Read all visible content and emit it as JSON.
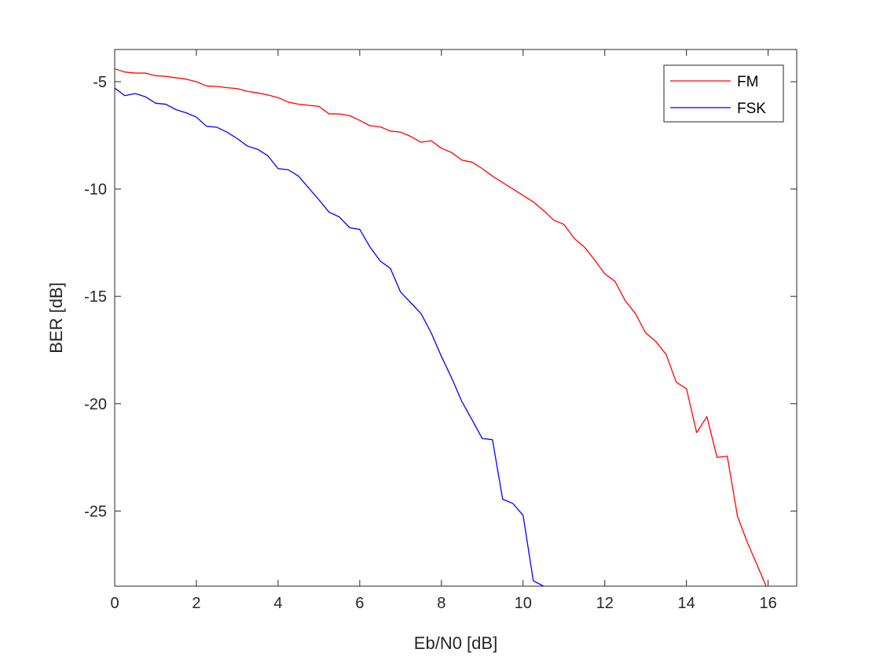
{
  "chart_data": {
    "type": "line",
    "title": "",
    "xlabel": "Eb/N0 [dB]",
    "ylabel": "BER [dB]",
    "xlim": [
      0,
      16.7
    ],
    "ylim": [
      -28.5,
      -3.5
    ],
    "xticks": [
      0,
      2,
      4,
      6,
      8,
      10,
      12,
      14,
      16
    ],
    "xtick_labels": [
      "0",
      "2",
      "4",
      "6",
      "8",
      "10",
      "12",
      "14",
      "16"
    ],
    "yticks": [
      -5,
      -10,
      -15,
      -20,
      -25
    ],
    "ytick_labels": [
      "-5",
      "-10",
      "-15",
      "-20",
      "-25"
    ],
    "grid": false,
    "legend_position": "top-right",
    "series": [
      {
        "name": "FM",
        "color": "#ff0000",
        "x": [
          0,
          0.25,
          0.5,
          0.75,
          1,
          1.25,
          1.5,
          1.75,
          2,
          2.25,
          2.5,
          2.75,
          3,
          3.25,
          3.5,
          3.75,
          4,
          4.25,
          4.5,
          4.75,
          5,
          5.25,
          5.5,
          5.75,
          6,
          6.25,
          6.5,
          6.75,
          7,
          7.25,
          7.5,
          7.75,
          8,
          8.25,
          8.5,
          8.75,
          9,
          9.25,
          9.5,
          9.75,
          10,
          10.25,
          10.5,
          10.75,
          11,
          11.25,
          11.5,
          11.75,
          12,
          12.25,
          12.5,
          12.75,
          13,
          13.25,
          13.5,
          13.75,
          14,
          14.25,
          14.5,
          14.75,
          15,
          15.25,
          15.5,
          15.75,
          15.95
        ],
        "y": [
          -4.4,
          -4.55,
          -4.6,
          -4.6,
          -4.72,
          -4.75,
          -4.82,
          -4.88,
          -5.0,
          -5.2,
          -5.22,
          -5.28,
          -5.32,
          -5.45,
          -5.52,
          -5.62,
          -5.74,
          -5.95,
          -6.05,
          -6.1,
          -6.15,
          -6.5,
          -6.5,
          -6.58,
          -6.8,
          -7.05,
          -7.1,
          -7.3,
          -7.35,
          -7.55,
          -7.82,
          -7.75,
          -8.1,
          -8.3,
          -8.65,
          -8.75,
          -9.05,
          -9.4,
          -9.7,
          -10.0,
          -10.3,
          -10.6,
          -11.0,
          -11.45,
          -11.65,
          -12.3,
          -12.7,
          -13.3,
          -13.95,
          -14.3,
          -15.2,
          -15.8,
          -16.7,
          -17.1,
          -17.7,
          -19.0,
          -19.3,
          -21.35,
          -20.6,
          -22.5,
          -22.45,
          -25.25,
          -26.5,
          -27.6,
          -28.5
        ]
      },
      {
        "name": "FSK",
        "color": "#0000ff",
        "x": [
          0,
          0.25,
          0.5,
          0.75,
          1,
          1.25,
          1.5,
          1.75,
          2,
          2.25,
          2.5,
          2.75,
          3,
          3.25,
          3.5,
          3.75,
          4,
          4.25,
          4.5,
          4.75,
          5,
          5.25,
          5.5,
          5.75,
          6,
          6.25,
          6.5,
          6.75,
          7,
          7.25,
          7.5,
          7.75,
          8,
          8.25,
          8.5,
          8.75,
          9,
          9.25,
          9.5,
          9.75,
          10,
          10.25,
          10.5
        ],
        "y": [
          -5.3,
          -5.65,
          -5.55,
          -5.7,
          -6.0,
          -6.05,
          -6.3,
          -6.45,
          -6.65,
          -7.08,
          -7.12,
          -7.35,
          -7.65,
          -8.0,
          -8.15,
          -8.45,
          -9.05,
          -9.1,
          -9.4,
          -9.95,
          -10.5,
          -11.08,
          -11.3,
          -11.8,
          -11.88,
          -12.7,
          -13.35,
          -13.7,
          -14.8,
          -15.3,
          -15.8,
          -16.7,
          -17.8,
          -18.8,
          -19.9,
          -20.75,
          -21.62,
          -21.68,
          -24.45,
          -24.65,
          -25.2,
          -28.25,
          -28.5
        ]
      }
    ]
  }
}
